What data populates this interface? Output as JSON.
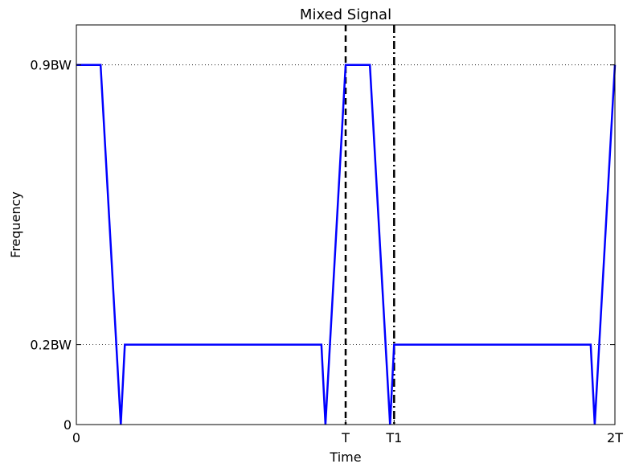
{
  "chart_data": {
    "type": "line",
    "title": "Mixed Signal",
    "xlabel": "Time",
    "ylabel": "Frequency",
    "xlim": [
      0,
      2
    ],
    "ylim": [
      0,
      1.0
    ],
    "x_ticks": [
      {
        "value": 0,
        "label": "0"
      },
      {
        "value": 1,
        "label": "T"
      },
      {
        "value": 1.18,
        "label": "T1"
      },
      {
        "value": 2,
        "label": "2T"
      }
    ],
    "y_ticks": [
      {
        "value": 0,
        "label": "0"
      },
      {
        "value": 0.2,
        "label": "0.2BW"
      },
      {
        "value": 0.9,
        "label": "0.9BW"
      }
    ],
    "grid": {
      "y_values": [
        0.2,
        0.9
      ],
      "style": "dotted"
    },
    "vertical_lines": [
      {
        "x": 1.0,
        "style": "dashed",
        "color": "#000000"
      },
      {
        "x": 1.18,
        "style": "dashdot",
        "color": "#000000"
      }
    ],
    "series": [
      {
        "color": "#0000ff",
        "x": [
          0,
          0.09,
          0.165,
          0.18,
          0.91,
          0.925,
          1.0,
          1.09,
          1.165,
          1.18,
          1.91,
          1.925,
          2.0
        ],
        "y": [
          0.9,
          0.9,
          0.0,
          0.2,
          0.2,
          0.0,
          0.9,
          0.9,
          0.0,
          0.2,
          0.2,
          0.0,
          0.9
        ]
      }
    ]
  }
}
